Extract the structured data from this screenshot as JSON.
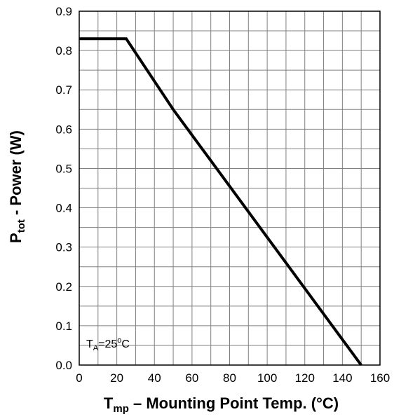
{
  "chart_data": {
    "type": "line",
    "xlabel": {
      "main": "T",
      "sub": "mp",
      "rest": " – Mounting Point Temp.  (°C)"
    },
    "ylabel": {
      "main": "P",
      "sub": "tot",
      "rest": " - Power (W)"
    },
    "xlim": [
      0,
      160
    ],
    "ylim": [
      0,
      0.9
    ],
    "x_ticks": [
      "0",
      "20",
      "40",
      "60",
      "80",
      "100",
      "120",
      "140",
      "160"
    ],
    "y_ticks": [
      "0.0",
      "0.1",
      "0.2",
      "0.3",
      "0.4",
      "0.5",
      "0.6",
      "0.7",
      "0.8",
      "0.9"
    ],
    "grid": true,
    "series": [
      {
        "x": [
          0,
          25,
          50,
          150
        ],
        "y": [
          0.83,
          0.83,
          0.65,
          0.0
        ]
      }
    ],
    "annotation": {
      "main": "T",
      "sub": "A",
      "mid": "=25",
      "sup": "o",
      "end": "C"
    },
    "colors": {
      "line": "#000000",
      "grid": "#808080",
      "frame": "#000000",
      "background": "#ffffff"
    }
  }
}
